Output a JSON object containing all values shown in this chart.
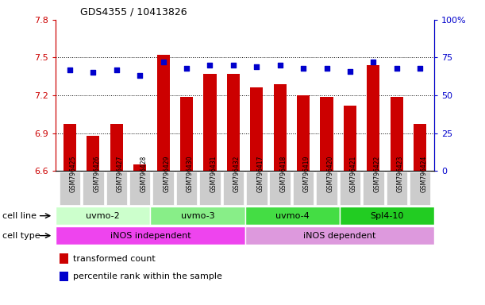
{
  "title": "GDS4355 / 10413826",
  "samples": [
    "GSM796425",
    "GSM796426",
    "GSM796427",
    "GSM796428",
    "GSM796429",
    "GSM796430",
    "GSM796431",
    "GSM796432",
    "GSM796417",
    "GSM796418",
    "GSM796419",
    "GSM796420",
    "GSM796421",
    "GSM796422",
    "GSM796423",
    "GSM796424"
  ],
  "bar_values": [
    6.97,
    6.88,
    6.97,
    6.65,
    7.52,
    7.19,
    7.37,
    7.37,
    7.26,
    7.29,
    7.2,
    7.19,
    7.12,
    7.44,
    7.19,
    6.97
  ],
  "percentile_values": [
    67,
    65,
    67,
    63,
    72,
    68,
    70,
    70,
    69,
    70,
    68,
    68,
    66,
    72,
    68,
    68
  ],
  "ylim_left": [
    6.6,
    7.8
  ],
  "ylim_right": [
    0,
    100
  ],
  "yticks_left": [
    6.6,
    6.9,
    7.2,
    7.5,
    7.8
  ],
  "yticks_right": [
    0,
    25,
    50,
    75,
    100
  ],
  "bar_color": "#CC0000",
  "dot_color": "#0000CC",
  "bar_bottom": 6.6,
  "cell_line_groups": [
    {
      "label": "uvmo-2",
      "start": 0,
      "end": 3,
      "color": "#ccffcc"
    },
    {
      "label": "uvmo-3",
      "start": 4,
      "end": 7,
      "color": "#88ee88"
    },
    {
      "label": "uvmo-4",
      "start": 8,
      "end": 11,
      "color": "#44dd44"
    },
    {
      "label": "Spl4-10",
      "start": 12,
      "end": 15,
      "color": "#22cc22"
    }
  ],
  "cell_type_groups": [
    {
      "label": "iNOS independent",
      "start": 0,
      "end": 7,
      "color": "#ee44ee"
    },
    {
      "label": "iNOS dependent",
      "start": 8,
      "end": 15,
      "color": "#dd99dd"
    }
  ],
  "legend_items": [
    {
      "label": "transformed count",
      "color": "#CC0000"
    },
    {
      "label": "percentile rank within the sample",
      "color": "#0000CC"
    }
  ],
  "row_label_cell_line": "cell line",
  "row_label_cell_type": "cell type",
  "background_color": "#ffffff",
  "grid_color": "#000000",
  "plot_bg_color": "#ffffff",
  "spine_color": "#000000",
  "xtick_bg_color": "#cccccc"
}
